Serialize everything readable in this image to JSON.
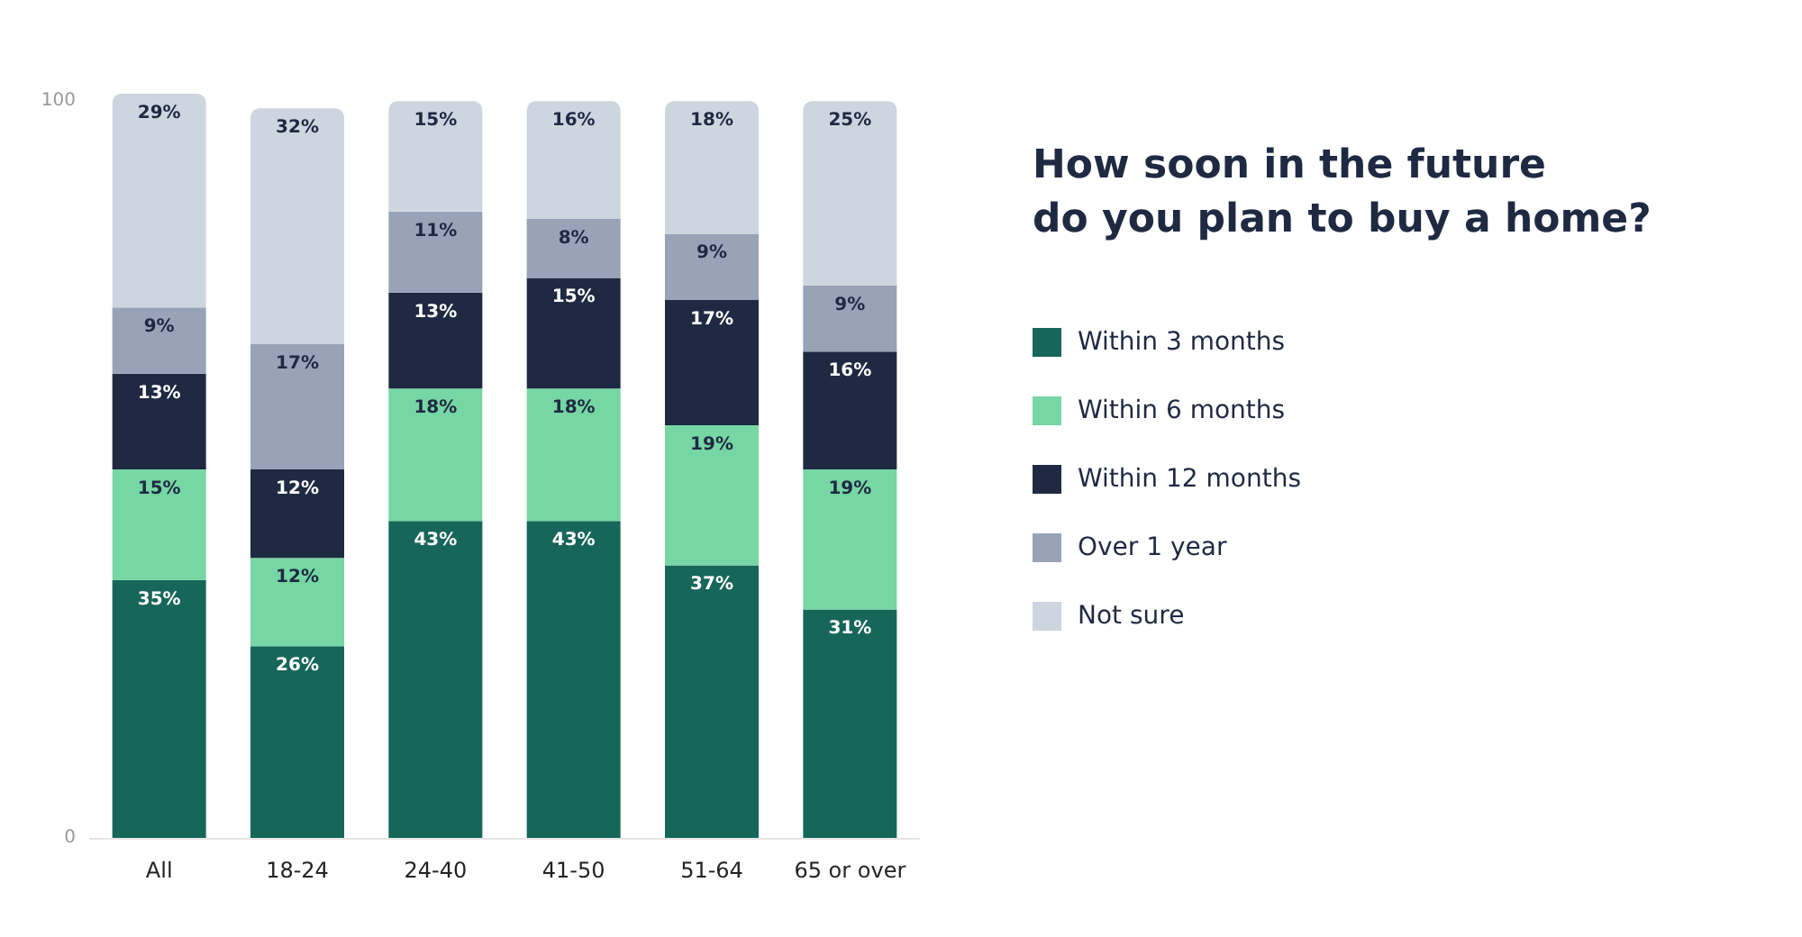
{
  "chart_data": {
    "type": "bar",
    "stacked": true,
    "title": "How soon in the future\ndo you plan to buy a home?",
    "categories": [
      "All",
      "18-24",
      "24-40",
      "41-50",
      "51-64",
      "65 or over"
    ],
    "ylim": [
      0,
      101
    ],
    "yticks": [
      0,
      100
    ],
    "grid": false,
    "legend": "right",
    "series": [
      {
        "name": "Within 3 months",
        "color": "#17665a",
        "values": [
          35,
          26,
          43,
          43,
          37,
          31
        ],
        "value_labels": [
          "35%",
          "26%",
          "43%",
          "43%",
          "37%",
          "31%"
        ]
      },
      {
        "name": "Within 6 months",
        "color": "#76d6a4",
        "values": [
          15,
          12,
          18,
          18,
          19,
          19
        ],
        "value_labels": [
          "15%",
          "12%",
          "18%",
          "18%",
          "19%",
          "19%"
        ]
      },
      {
        "name": "Within 12 months",
        "color": "#1f2942",
        "values": [
          13,
          12,
          13,
          15,
          17,
          16
        ],
        "value_labels": [
          "13%",
          "12%",
          "13%",
          "15%",
          "17%",
          "16%"
        ]
      },
      {
        "name": "Over 1 year",
        "color": "#98a3b8",
        "values": [
          9,
          17,
          11,
          8,
          9,
          9
        ],
        "value_labels": [
          "9%",
          "17%",
          "11%",
          "8%",
          "9%",
          "9%"
        ]
      },
      {
        "name": "Not sure",
        "color": "#cdd6df",
        "values": [
          29,
          32,
          15,
          16,
          18,
          25
        ],
        "value_labels": [
          "29%",
          "32%",
          "15%",
          "16%",
          "18%",
          "25%"
        ]
      }
    ]
  }
}
